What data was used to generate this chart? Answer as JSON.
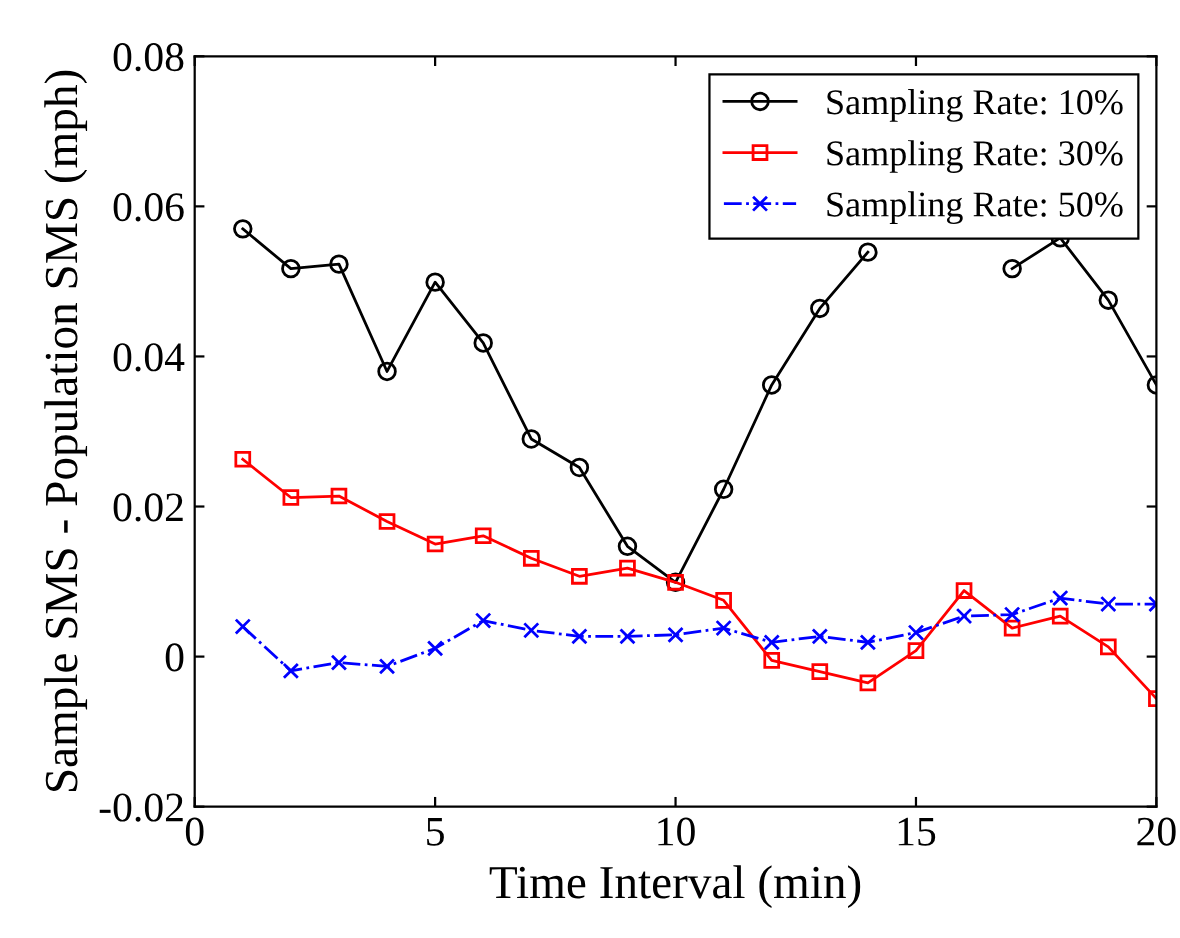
{
  "chart_data": {
    "type": "line",
    "xlabel": "Time Interval (min)",
    "ylabel": "Sample SMS - Population SMS (mph)",
    "x": [
      1,
      2,
      3,
      4,
      5,
      6,
      7,
      8,
      9,
      10,
      11,
      12,
      13,
      14,
      15,
      16,
      17,
      18,
      19,
      20
    ],
    "xlim": [
      0,
      20
    ],
    "xticks": [
      0,
      5,
      10,
      15,
      20
    ],
    "ylim": [
      -0.02,
      0.08
    ],
    "yticks": [
      -0.02,
      0,
      0.02,
      0.04,
      0.06,
      0.08
    ],
    "grid": false,
    "legend": "top right",
    "series": [
      {
        "name": "Sampling Rate: 10%",
        "color": "#000000",
        "marker": "circle",
        "line_style": "solid",
        "values": [
          0.057,
          0.0517,
          0.0523,
          0.038,
          0.0499,
          0.0418,
          0.029,
          0.0252,
          0.0147,
          0.0099,
          0.0223,
          0.0362,
          0.0464,
          0.0539,
          null,
          null,
          0.0517,
          0.0558,
          0.0475,
          0.0362
        ]
      },
      {
        "name": "Sampling Rate: 30%",
        "color": "#ff0000",
        "marker": "square",
        "line_style": "solid",
        "values": [
          0.0263,
          0.0212,
          0.0214,
          0.018,
          0.015,
          0.0161,
          0.0131,
          0.0107,
          0.0118,
          0.0099,
          0.0075,
          -0.0005,
          -0.002,
          -0.0035,
          0.0008,
          0.0088,
          0.0038,
          0.0054,
          0.0013,
          -0.0056
        ]
      },
      {
        "name": "Sampling Rate: 50%",
        "color": "#0000ff",
        "marker": "cross",
        "line_style": "dashdot",
        "values": [
          0.004,
          -0.0019,
          -0.0008,
          -0.0013,
          0.0011,
          0.0048,
          0.0035,
          0.0027,
          0.0027,
          0.0029,
          0.0038,
          0.0019,
          0.0027,
          0.0019,
          0.0032,
          0.0054,
          0.0056,
          0.0078,
          0.007,
          0.007
        ]
      }
    ]
  }
}
